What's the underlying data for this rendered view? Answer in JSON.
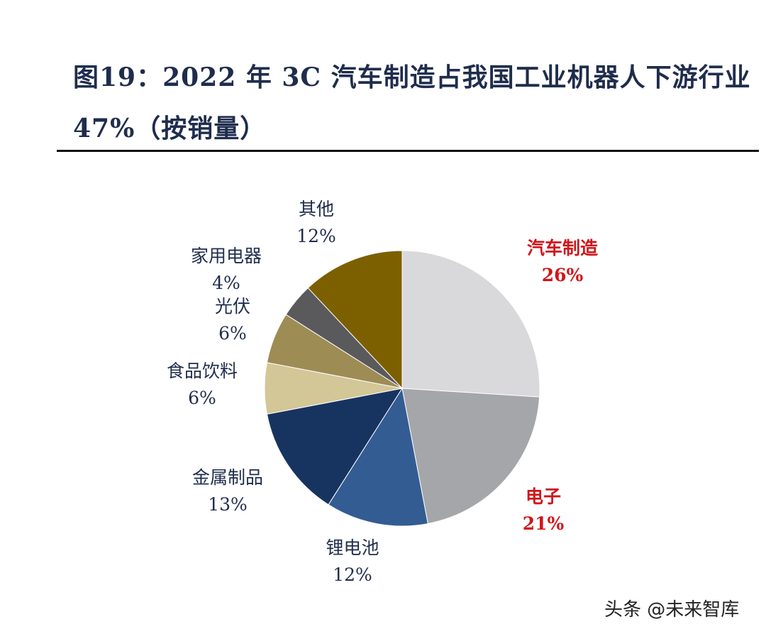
{
  "header": {
    "title_line1": "图19：2022 年 3C 汽车制造占我国工业机器人下游行业",
    "title_line2": "47%（按销量）"
  },
  "watermark": "头条 @未来智库",
  "chart_data": {
    "type": "pie",
    "start": "top",
    "direction": "clockwise",
    "slices": [
      {
        "label": "汽车制造",
        "value": 26,
        "display": "26%",
        "color": "#d9d9dc",
        "highlight": true
      },
      {
        "label": "电子",
        "value": 21,
        "display": "21%",
        "color": "#a5a6a9",
        "highlight": true
      },
      {
        "label": "锂电池",
        "value": 12,
        "display": "12%",
        "color": "#335c92",
        "highlight": false
      },
      {
        "label": "金属制品",
        "value": 13,
        "display": "13%",
        "color": "#173461",
        "highlight": false
      },
      {
        "label": "食品饮料",
        "value": 6,
        "display": "6%",
        "color": "#d3c697",
        "highlight": false
      },
      {
        "label": "光伏",
        "value": 6,
        "display": "6%",
        "color": "#9e8c55",
        "highlight": false
      },
      {
        "label": "家用电器",
        "value": 4,
        "display": "4%",
        "color": "#5a5a5d",
        "highlight": false
      },
      {
        "label": "其他",
        "value": 12,
        "display": "12%",
        "color": "#7c6000",
        "highlight": false
      }
    ]
  }
}
